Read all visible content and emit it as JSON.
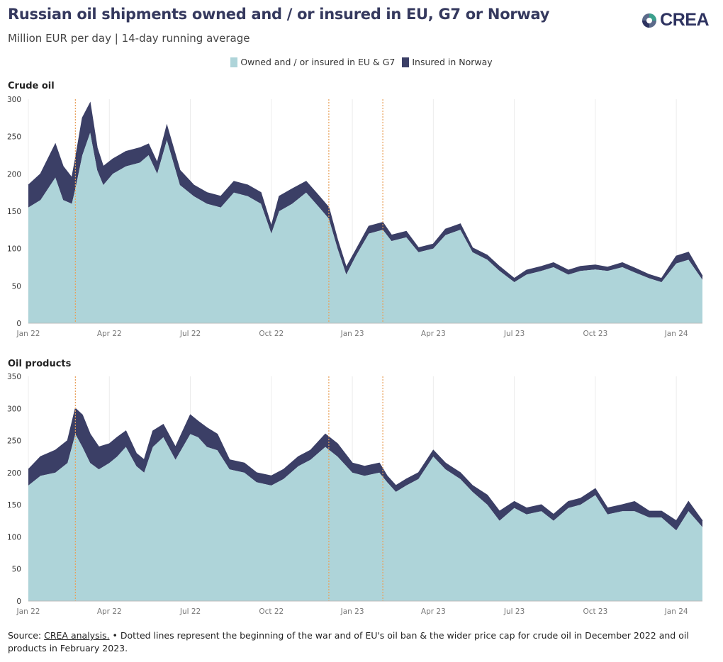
{
  "title": "Russian oil shipments owned and / or insured in EU, G7 or Norway",
  "subtitle": "Million EUR per day | 14-day running average",
  "logo": "CREA",
  "colors": {
    "owned_eu_g7": "#aed4d9",
    "insured_norway": "#3b3f66",
    "event_line": "#e8a05a",
    "grid": "#ececec"
  },
  "legend": [
    {
      "label": "Owned and / or insured in EU & G7",
      "color": "#aed4d9"
    },
    {
      "label": "Insured in Norway",
      "color": "#3b3f66"
    }
  ],
  "footer": {
    "source_label": "Source: ",
    "source_link": "CREA analysis.",
    "note": " • Dotted lines represent the beginning of the war and of EU's oil ban & the wider price cap for crude oil in December 2022 and oil products in February 2023."
  },
  "chart_data": [
    {
      "type": "area",
      "title": "Crude oil",
      "stacked": true,
      "x_range": [
        "2022-01-01",
        "2024-01-31"
      ],
      "x_ticks": [
        "Jan 22",
        "Apr 22",
        "Jul 22",
        "Oct 22",
        "Jan 23",
        "Apr 23",
        "Jul 23",
        "Oct 23",
        "Jan 24"
      ],
      "ylim": [
        0,
        300
      ],
      "y_ticks": [
        0,
        50,
        100,
        150,
        200,
        250,
        300
      ],
      "event_lines": [
        "2022-02-24",
        "2022-12-05",
        "2023-02-05"
      ],
      "x": [
        "2022-01-01",
        "2022-01-15",
        "2022-02-01",
        "2022-02-10",
        "2022-02-20",
        "2022-02-24",
        "2022-03-01",
        "2022-03-10",
        "2022-03-18",
        "2022-03-25",
        "2022-04-05",
        "2022-04-20",
        "2022-05-05",
        "2022-05-15",
        "2022-05-25",
        "2022-06-05",
        "2022-06-20",
        "2022-07-05",
        "2022-07-20",
        "2022-08-05",
        "2022-08-20",
        "2022-09-05",
        "2022-09-20",
        "2022-10-01",
        "2022-10-10",
        "2022-10-25",
        "2022-11-10",
        "2022-11-25",
        "2022-12-05",
        "2022-12-15",
        "2022-12-25",
        "2023-01-05",
        "2023-01-20",
        "2023-02-05",
        "2023-02-15",
        "2023-03-01",
        "2023-03-15",
        "2023-04-01",
        "2023-04-15",
        "2023-05-01",
        "2023-05-15",
        "2023-06-01",
        "2023-06-15",
        "2023-07-01",
        "2023-07-15",
        "2023-08-01",
        "2023-08-15",
        "2023-09-01",
        "2023-09-15",
        "2023-10-01",
        "2023-10-15",
        "2023-11-01",
        "2023-11-15",
        "2023-12-01",
        "2023-12-15",
        "2024-01-01",
        "2024-01-15",
        "2024-01-31"
      ],
      "series": [
        {
          "name": "Owned and / or insured in EU & G7",
          "values": [
            155,
            165,
            195,
            165,
            160,
            180,
            225,
            255,
            205,
            185,
            200,
            210,
            215,
            225,
            200,
            245,
            185,
            170,
            160,
            155,
            175,
            170,
            160,
            120,
            150,
            160,
            175,
            155,
            140,
            100,
            65,
            90,
            120,
            125,
            110,
            115,
            95,
            100,
            118,
            125,
            95,
            85,
            70,
            55,
            65,
            70,
            75,
            65,
            70,
            72,
            70,
            75,
            68,
            60,
            55,
            80,
            85,
            58
          ]
        },
        {
          "name": "Insured in Norway",
          "values": [
            30,
            35,
            45,
            45,
            35,
            40,
            50,
            40,
            30,
            25,
            20,
            20,
            20,
            15,
            15,
            20,
            20,
            15,
            15,
            15,
            15,
            15,
            15,
            10,
            20,
            20,
            15,
            15,
            15,
            12,
            10,
            8,
            10,
            10,
            8,
            8,
            6,
            6,
            8,
            8,
            6,
            6,
            6,
            5,
            6,
            6,
            6,
            6,
            6,
            6,
            5,
            6,
            6,
            5,
            5,
            10,
            10,
            5
          ]
        }
      ]
    },
    {
      "type": "area",
      "title": "Oil products",
      "stacked": true,
      "x_range": [
        "2022-01-01",
        "2024-01-31"
      ],
      "x_ticks": [
        "Jan 22",
        "Apr 22",
        "Jul 22",
        "Oct 22",
        "Jan 23",
        "Apr 23",
        "Jul 23",
        "Oct 23",
        "Jan 24"
      ],
      "ylim": [
        0,
        350
      ],
      "y_ticks": [
        0,
        50,
        100,
        150,
        200,
        250,
        300,
        350
      ],
      "event_lines": [
        "2022-02-24",
        "2022-12-05",
        "2023-02-05"
      ],
      "x": [
        "2022-01-01",
        "2022-01-15",
        "2022-02-01",
        "2022-02-15",
        "2022-02-24",
        "2022-03-01",
        "2022-03-10",
        "2022-03-20",
        "2022-04-01",
        "2022-04-10",
        "2022-04-20",
        "2022-05-01",
        "2022-05-10",
        "2022-05-20",
        "2022-06-01",
        "2022-06-15",
        "2022-07-01",
        "2022-07-10",
        "2022-07-20",
        "2022-08-01",
        "2022-08-15",
        "2022-09-01",
        "2022-09-15",
        "2022-10-01",
        "2022-10-15",
        "2022-11-01",
        "2022-11-15",
        "2022-12-01",
        "2022-12-15",
        "2023-01-01",
        "2023-01-15",
        "2023-02-01",
        "2023-02-10",
        "2023-02-20",
        "2023-03-01",
        "2023-03-15",
        "2023-04-01",
        "2023-04-15",
        "2023-05-01",
        "2023-05-15",
        "2023-06-01",
        "2023-06-15",
        "2023-07-01",
        "2023-07-15",
        "2023-08-01",
        "2023-08-15",
        "2023-09-01",
        "2023-09-15",
        "2023-10-01",
        "2023-10-15",
        "2023-11-01",
        "2023-11-15",
        "2023-12-01",
        "2023-12-15",
        "2024-01-01",
        "2024-01-15",
        "2024-01-31"
      ],
      "series": [
        {
          "name": "Owned and / or insured in EU & G7",
          "values": [
            180,
            195,
            200,
            215,
            260,
            240,
            215,
            205,
            215,
            225,
            240,
            210,
            200,
            240,
            255,
            220,
            260,
            255,
            240,
            235,
            205,
            200,
            185,
            180,
            190,
            210,
            220,
            240,
            225,
            200,
            195,
            200,
            185,
            170,
            180,
            190,
            225,
            205,
            190,
            170,
            150,
            125,
            145,
            135,
            140,
            125,
            145,
            150,
            165,
            135,
            140,
            140,
            130,
            130,
            110,
            140,
            115
          ]
        },
        {
          "name": "Insured in Norway",
          "values": [
            25,
            30,
            35,
            35,
            40,
            50,
            45,
            35,
            30,
            30,
            25,
            20,
            20,
            25,
            20,
            20,
            30,
            25,
            30,
            25,
            15,
            15,
            15,
            15,
            15,
            15,
            15,
            20,
            20,
            15,
            15,
            15,
            10,
            10,
            10,
            10,
            10,
            10,
            10,
            10,
            15,
            15,
            10,
            10,
            10,
            10,
            10,
            10,
            10,
            10,
            10,
            15,
            10,
            10,
            15,
            15,
            10
          ]
        }
      ]
    }
  ]
}
